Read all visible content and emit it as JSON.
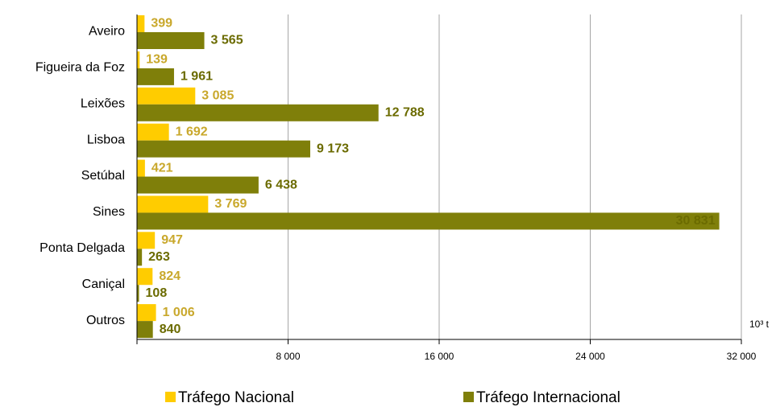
{
  "chart_data": {
    "type": "hbar",
    "unit_label": "10³ t",
    "categories": [
      "Aveiro",
      "Figueira da Foz",
      "Leixões",
      "Lisboa",
      "Setúbal",
      "Sines",
      "Ponta Delgada",
      "Caniçal",
      "Outros"
    ],
    "series": [
      {
        "name": "Tráfego Nacional",
        "color": "#FFCC00",
        "label_color": "#C9A82C",
        "values": [
          399,
          139,
          3085,
          1692,
          421,
          3769,
          947,
          824,
          1006
        ],
        "value_labels": [
          "399",
          "139",
          "3 085",
          "1 692",
          "421",
          "3 769",
          "947",
          "824",
          "1 006"
        ]
      },
      {
        "name": "Tráfego Internacional",
        "color": "#7F7F0A",
        "label_color": "#6B6B00",
        "values": [
          3565,
          1961,
          12788,
          9173,
          6438,
          30831,
          263,
          108,
          840
        ],
        "value_labels": [
          "3 565",
          "1 961",
          "12 788",
          "9 173",
          "6 438",
          "30 831",
          "263",
          "108",
          "840"
        ]
      }
    ],
    "xlim": [
      0,
      32000
    ],
    "xticks": [
      {
        "value": 8000,
        "label": "8 000"
      },
      {
        "value": 16000,
        "label": "16 000"
      },
      {
        "value": 24000,
        "label": "24 000"
      },
      {
        "value": 32000,
        "label": "32 000"
      }
    ],
    "grid": true
  }
}
